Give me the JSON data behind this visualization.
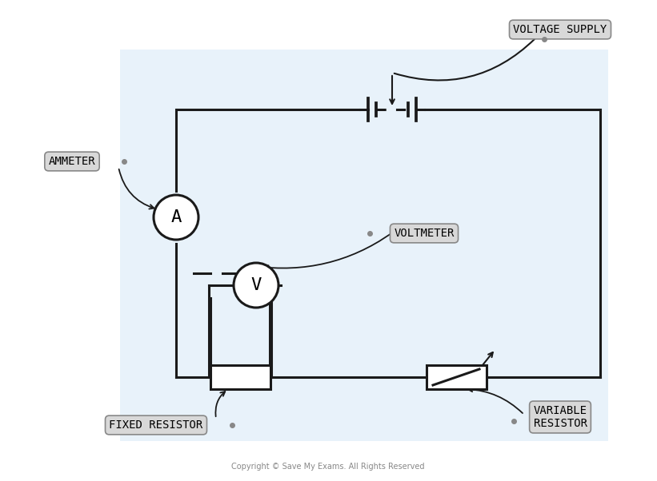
{
  "bg_color": "#f0f6fc",
  "line_color": "#1a1a1a",
  "label_bg": "#d8d8d8",
  "label_border": "#888888",
  "copyright_text": "Copyright © Save My Exams. All Rights Reserved",
  "voltage_supply_label": "VOLTAGE SUPPLY",
  "ammeter_label": "AMMETER",
  "voltmeter_label": "VOLTMETER",
  "fixed_resistor_label": "FIXED RESISTOR",
  "variable_resistor_label": "VARIABLE\nRESISTOR",
  "ammeter_symbol": "A",
  "voltmeter_symbol": "V",
  "lw": 2.2
}
